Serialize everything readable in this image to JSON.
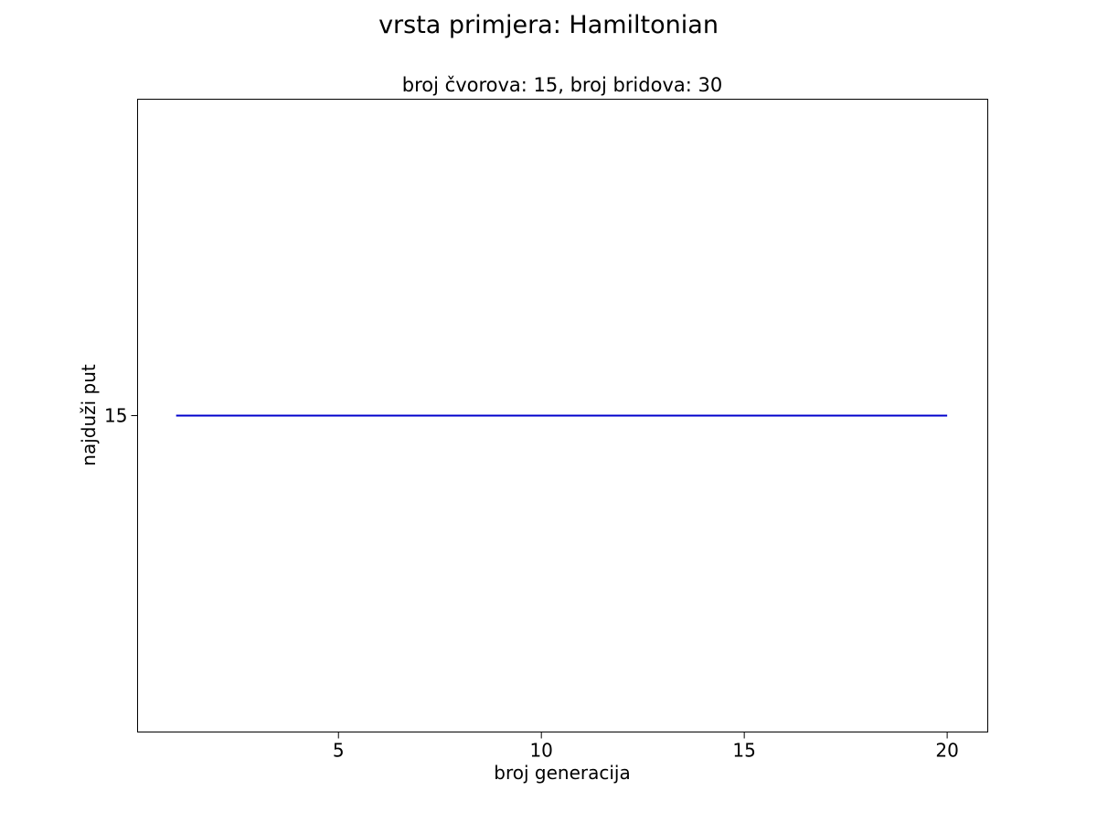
{
  "figure": {
    "suptitle": "vrsta primjera: Hamiltonian"
  },
  "chart_data": {
    "type": "line",
    "title": "broj čvorova: 15, broj bridova: 30",
    "xlabel": "broj generacija",
    "ylabel": "najduži put",
    "xlim": [
      0.05,
      21
    ],
    "ylim": [
      14,
      16
    ],
    "xticks": [
      5,
      10,
      15,
      20
    ],
    "yticks": [
      15
    ],
    "grid": false,
    "series": [
      {
        "color": "#0000cc",
        "x": [
          1,
          2,
          3,
          4,
          5,
          6,
          7,
          8,
          9,
          10,
          11,
          12,
          13,
          14,
          15,
          16,
          17,
          18,
          19,
          20
        ],
        "y": [
          15,
          15,
          15,
          15,
          15,
          15,
          15,
          15,
          15,
          15,
          15,
          15,
          15,
          15,
          15,
          15,
          15,
          15,
          15,
          15
        ]
      }
    ]
  }
}
